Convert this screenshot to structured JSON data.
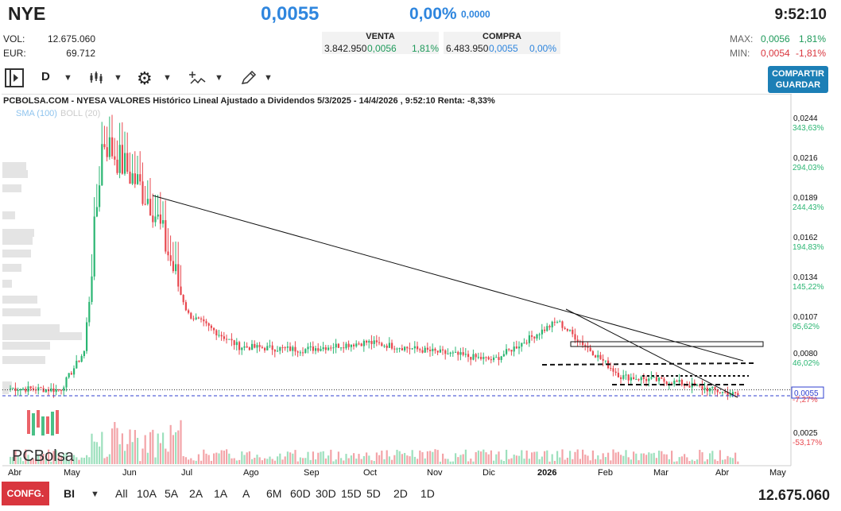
{
  "header": {
    "ticker": "NYE",
    "price": "0,0055",
    "change_pct": "0,00%",
    "change_abs": "0,0000",
    "time": "9:52:10",
    "vol_label": "VOL:",
    "vol_value": "12.675.060",
    "eur_label": "EUR:",
    "eur_value": "69.712",
    "venta_label": "VENTA",
    "venta_qty": "3.842.950",
    "venta_price": "0,0056",
    "venta_pct": "1,81%",
    "compra_label": "COMPRA",
    "compra_qty": "6.483.950",
    "compra_price": "0,0055",
    "compra_pct": "0,00%",
    "max_label": "MAX:",
    "max_value": "0,0056",
    "max_pct": "1,81%",
    "min_label": "MIN:",
    "min_value": "0,0054",
    "min_pct": "-1,81%"
  },
  "toolbar": {
    "period": "D",
    "share_label": "COMPARTIR",
    "save_label": "GUARDAR",
    "icons": [
      "panel-toggle-icon",
      "candles-icon",
      "gear-icon",
      "indicators-icon",
      "pencil-icon"
    ]
  },
  "bottom": {
    "config_label": "CONFG.",
    "bi_label": "BI",
    "periods": [
      "All",
      "10A",
      "5A",
      "2A",
      "1A",
      "A",
      "6M",
      "60D",
      "30D",
      "15D",
      "5D",
      "2D",
      "1D"
    ],
    "volume_total": "12.675.060"
  },
  "colors": {
    "up": "#2bb673",
    "down": "#e8484f",
    "accent": "#2f86de"
  },
  "chart_data": {
    "type": "candlestick",
    "title": "PCBOLSA.COM - NYESA VALORES Histórico Lineal Ajustado a Dividendos 5/3/2025 - 14/4/2026 , 9:52:10 Renta: -8,33%",
    "legend": [
      "SMA (100)",
      "BOLL (20)"
    ],
    "watermark": "PCBolsa",
    "x_ticks": [
      "Abr",
      "May",
      "Jun",
      "Jul",
      "Ago",
      "Sep",
      "Oct",
      "Nov",
      "Dic",
      "2026",
      "Feb",
      "Mar",
      "Abr",
      "May"
    ],
    "y_ticks": [
      {
        "price": "0,0244",
        "pct": "343,63%"
      },
      {
        "price": "0,0216",
        "pct": "294,03%"
      },
      {
        "price": "0,0189",
        "pct": "244,43%"
      },
      {
        "price": "0,0162",
        "pct": "194,83%"
      },
      {
        "price": "0,0134",
        "pct": "145,22%"
      },
      {
        "price": "0,0107",
        "pct": "95,62%"
      },
      {
        "price": "0,0080",
        "pct": "46,02%"
      },
      {
        "price": "0,0055",
        "pct": ""
      },
      {
        "price": "",
        "pct": "-7,27%"
      },
      {
        "price": "0,0025",
        "pct": "-53,17%"
      }
    ],
    "ylim": [
      0.0008,
      0.0258
    ],
    "last_price": 0.0055,
    "reference_price": 0.0059,
    "series": [
      {
        "name": "close",
        "months": [
          "Mar",
          "Abr",
          "May-early",
          "May-peak",
          "Jun-spike",
          "Jul",
          "Ago",
          "Sep",
          "Oct",
          "Nov",
          "Dic",
          "Ene-spike",
          "Feb",
          "Mar",
          "Abr"
        ],
        "values": [
          0.006,
          0.0059,
          0.0085,
          0.0228,
          0.0185,
          0.011,
          0.0088,
          0.0086,
          0.0091,
          0.0085,
          0.0079,
          0.0105,
          0.0068,
          0.0064,
          0.0055
        ]
      }
    ]
  }
}
